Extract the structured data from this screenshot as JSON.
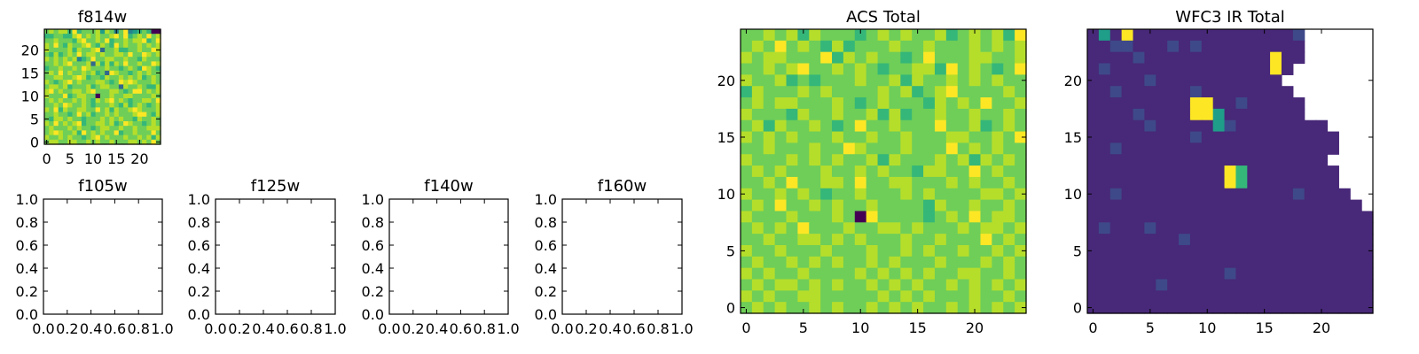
{
  "colors": {
    "viridis": [
      "#440154",
      "#482878",
      "#3e4989",
      "#31688e",
      "#26828e",
      "#1f9e89",
      "#35b779",
      "#6ece58",
      "#b5de2b",
      "#fde725"
    ],
    "axis": "#000000",
    "background": "#ffffff"
  },
  "chart_data": [
    {
      "type": "heatmap",
      "title": "f814w",
      "xlabel": "",
      "ylabel": "",
      "xlim": [
        -0.5,
        24.5
      ],
      "ylim": [
        -0.5,
        24.5
      ],
      "xticks": [
        0,
        5,
        10,
        15,
        20
      ],
      "xtick_labels": [
        "0",
        "5",
        "10",
        "15",
        "20"
      ],
      "yticks": [
        0,
        5,
        10,
        15,
        20
      ],
      "ytick_labels": [
        "0",
        "5",
        "10",
        "15",
        "20"
      ],
      "colormap": "viridis",
      "rows": [
        "7878869677785874794567600",
        "6677668978787789796787978",
        "7787776897787967787889679",
        "8797687789768769787787878",
        "8777786877893778667787798",
        "7686787978878778879779878",
        "8787878467977887787768777",
        "7787897778386868797787798",
        "6778778798777877678769876",
        "7879787787867398776787877",
        "7788778986776877878786787",
        "8767897877788767989877787",
        "7887867778678877387787668",
        "8978778878977788767997878",
        "8777967887707787788777787",
        "7878778787687897876778879",
        "7787987787677787686787678",
        "8796877887797868778987778",
        "7787767978677878777899768",
        "7688787767778787877687787",
        "8797878967788786798776787",
        "7877787877678877877877888",
        "7898778697878779677877797",
        "8778787767897877787787868",
        "7887788778787787778878797"
      ]
    },
    {
      "type": "heatmap",
      "title": "f105w",
      "xlim": [
        0,
        1
      ],
      "ylim": [
        0,
        1
      ],
      "xticks": [
        0,
        0.2,
        0.4,
        0.6,
        0.8,
        1
      ],
      "xtick_labels": [
        "0.0",
        "0.2",
        "0.4",
        "0.6",
        "0.8",
        "1.0"
      ],
      "yticks": [
        0,
        0.2,
        0.4,
        0.6,
        0.8,
        1
      ],
      "ytick_labels": [
        "0.0",
        "0.2",
        "0.4",
        "0.6",
        "0.8",
        "1.0"
      ],
      "rows": []
    },
    {
      "type": "heatmap",
      "title": "f125w",
      "xlim": [
        0,
        1
      ],
      "ylim": [
        0,
        1
      ],
      "xticks": [
        0,
        0.2,
        0.4,
        0.6,
        0.8,
        1
      ],
      "xtick_labels": [
        "0.0",
        "0.2",
        "0.4",
        "0.6",
        "0.8",
        "1.0"
      ],
      "yticks": [
        0,
        0.2,
        0.4,
        0.6,
        0.8,
        1
      ],
      "ytick_labels": [
        "0.0",
        "0.2",
        "0.4",
        "0.6",
        "0.8",
        "1.0"
      ],
      "rows": []
    },
    {
      "type": "heatmap",
      "title": "f140w",
      "xlim": [
        0,
        1
      ],
      "ylim": [
        0,
        1
      ],
      "xticks": [
        0,
        0.2,
        0.4,
        0.6,
        0.8,
        1
      ],
      "xtick_labels": [
        "0.0",
        "0.2",
        "0.4",
        "0.6",
        "0.8",
        "1.0"
      ],
      "yticks": [
        0,
        0.2,
        0.4,
        0.6,
        0.8,
        1
      ],
      "ytick_labels": [
        "0.0",
        "0.2",
        "0.4",
        "0.6",
        "0.8",
        "1.0"
      ],
      "rows": []
    },
    {
      "type": "heatmap",
      "title": "f160w",
      "xlim": [
        0,
        1
      ],
      "ylim": [
        0,
        1
      ],
      "xticks": [
        0,
        0.2,
        0.4,
        0.6,
        0.8,
        1
      ],
      "xtick_labels": [
        "0.0",
        "0.2",
        "0.4",
        "0.6",
        "0.8",
        "1.0"
      ],
      "yticks": [
        0,
        0.2,
        0.4,
        0.6,
        0.8,
        1
      ],
      "ytick_labels": [
        "0.0",
        "0.2",
        "0.4",
        "0.6",
        "0.8",
        "1.0"
      ],
      "rows": []
    },
    {
      "type": "heatmap",
      "title": "ACS Total",
      "xlim": [
        -0.5,
        24.5
      ],
      "ylim": [
        -0.5,
        24.5
      ],
      "xticks": [
        0,
        5,
        10,
        15,
        20
      ],
      "xtick_labels": [
        "0",
        "5",
        "10",
        "15",
        "20"
      ],
      "yticks": [
        0,
        5,
        10,
        15,
        20
      ],
      "ytick_labels": [
        "0",
        "5",
        "10",
        "15",
        "20"
      ],
      "colormap": "viridis",
      "rows": [
        "7787868777678787786787869",
        "7879787686777877877787878",
        "8788777968787767977788778",
        "7787897787876778869787679",
        "8778676777877868778787877",
        "6877787877778786789777787",
        "7878877787678777687879778",
        "8777687787786867787787787",
        "7868778767977877797786787",
        "8787877787787787778877879",
        "7787778779877787779787877",
        "8777878787786877787868787",
        "7878777877878776887797877",
        "7787977887977887778787787",
        "8778787677877787877778878",
        "7879778787787777687787787",
        "8777877787097777678797887",
        "7878797778778878777878878",
        "7787788787877787787779787",
        "8778777877787787877877878",
        "7877878787787877787778787",
        "8787787777878787877887787",
        "7878878787787878778787878",
        "8787788777778787877787787",
        "7878778787787878778787878"
      ]
    },
    {
      "type": "heatmap",
      "title": "WFC3 IR Total",
      "xlim": [
        -0.5,
        24.5
      ],
      "ylim": [
        -0.5,
        24.5
      ],
      "xticks": [
        0,
        5,
        10,
        15,
        20
      ],
      "xtick_labels": [
        "0",
        "5",
        "10",
        "15",
        "20"
      ],
      "yticks": [
        0,
        5,
        10,
        15,
        20
      ],
      "ytick_labels": [
        "0",
        "5",
        "10",
        "15",
        "20"
      ],
      "colormap": "viridis",
      "rows": [
        "1519111111111111112______",
        "1122111212111111111______",
        "1111211111111111911______",
        "121111111111111191_______",
        "11111211111111111________",
        "112111111211111111_______",
        "1111111119911211111______",
        "1111211119951111111______",
        "111112111115211111111____",
        "1111111112111111111111___",
        "1121111111111111111111___",
        "111111111111111111111____",
        "1111111111119611111111___",
        "1111111111119611111111___",
        "11211111111111111121111__",
        "111111111111111111111111_",
        "1111111111111111111111111",
        "1211121111111111111111111",
        "1111111121111111111111111",
        "1111111111111111111111111",
        "1111111111111111111111111",
        "1111111111112111111111111",
        "1111112111111111111111111",
        "1111111111111111111111111",
        "1111111111111111111111111"
      ]
    }
  ]
}
